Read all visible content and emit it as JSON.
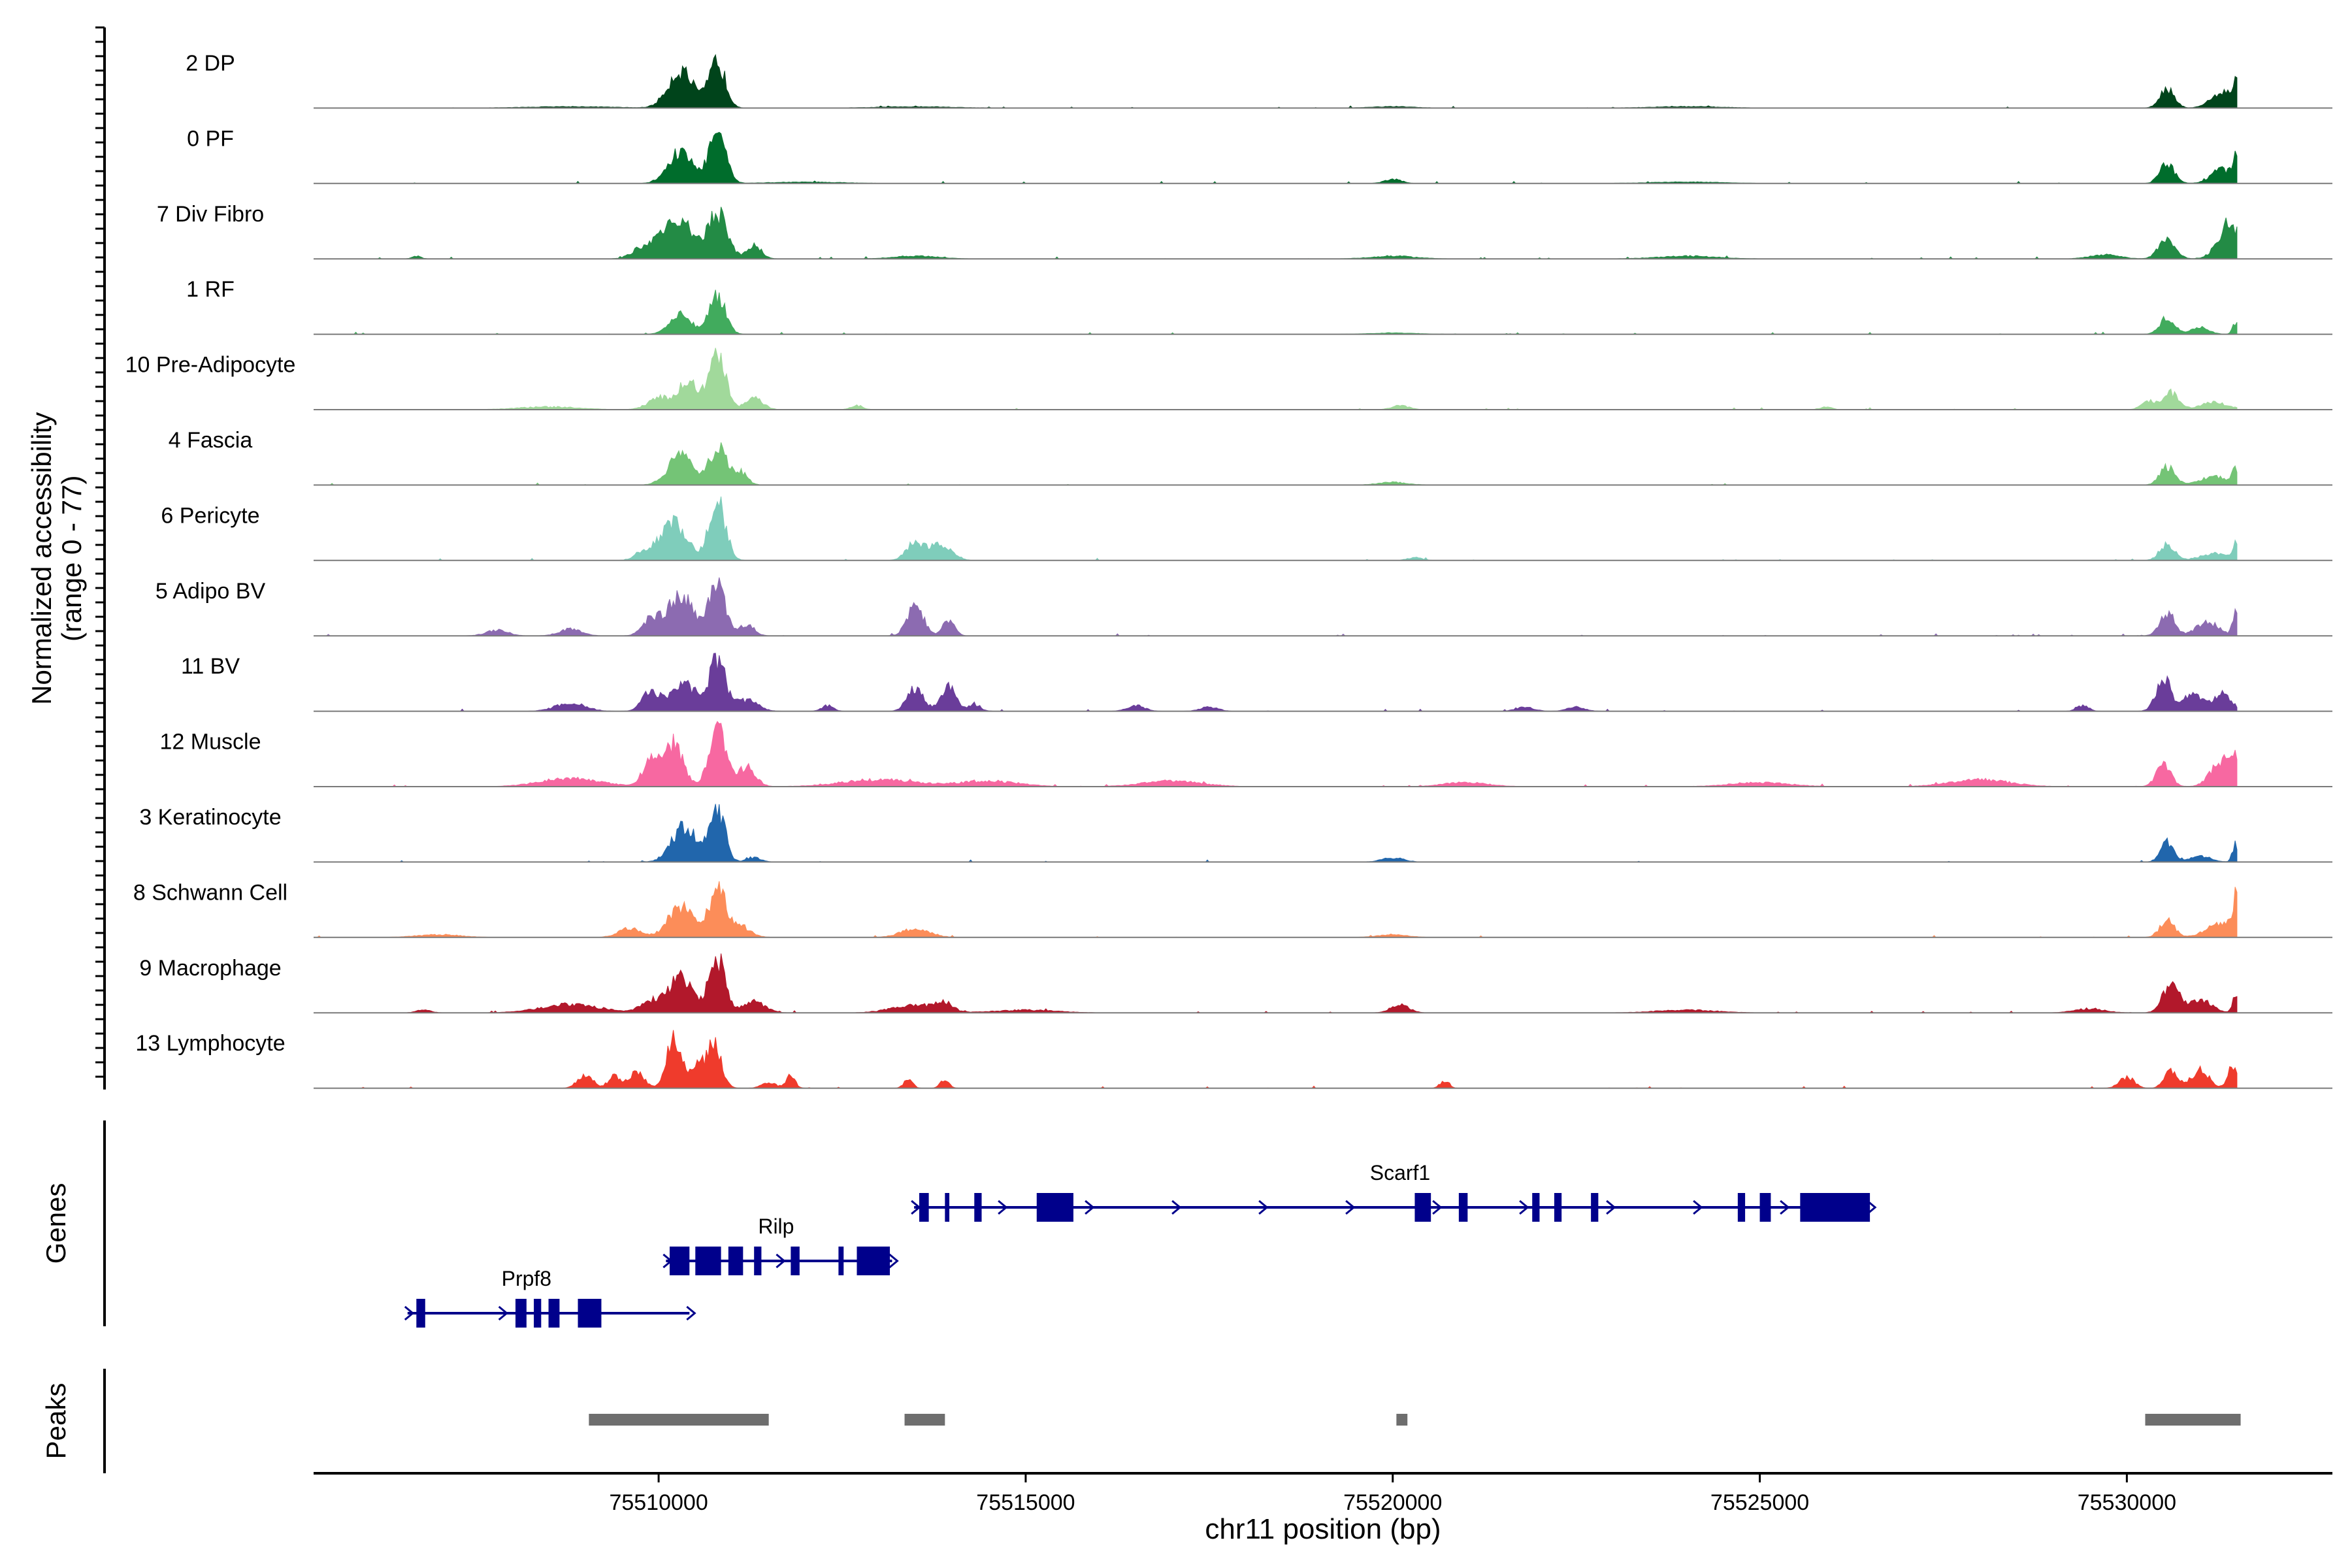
{
  "chart_data": {
    "type": "area",
    "y_axis_label": "Normalized accessibility",
    "y_axis_range_label": "(range 0 - 77)",
    "ylim": [
      0,
      77
    ],
    "xlabel": "chr11 position (bp)",
    "xlim": [
      75505300,
      75532800
    ],
    "x_ticks": [
      75510000,
      75515000,
      75520000,
      75525000,
      75530000
    ],
    "x_tick_labels": [
      "75510000",
      "75515000",
      "75520000",
      "75525000",
      "75530000"
    ],
    "region": [
      75505300,
      75531500
    ],
    "tracks": [
      {
        "label": "2 DP",
        "color": "#00441b",
        "peaks": [
          [
            75510300,
            27,
            170
          ],
          [
            75510800,
            33,
            110
          ],
          [
            75530550,
            14,
            100
          ],
          [
            75531300,
            12,
            150
          ],
          [
            75531480,
            15,
            40
          ],
          [
            75508800,
            1,
            600
          ],
          [
            75513500,
            1,
            500
          ],
          [
            75520000,
            1,
            300
          ],
          [
            75524000,
            1,
            500
          ]
        ]
      },
      {
        "label": "0 PF",
        "color": "#006d2c",
        "peaks": [
          [
            75510300,
            23,
            170
          ],
          [
            75510800,
            37,
            110
          ],
          [
            75530550,
            14,
            100
          ],
          [
            75531300,
            10,
            150
          ],
          [
            75531480,
            14,
            40
          ],
          [
            75520000,
            3,
            120
          ],
          [
            75512000,
            1,
            500
          ],
          [
            75524000,
            1,
            500
          ]
        ]
      },
      {
        "label": "7 Div Fibro",
        "color": "#238b45",
        "peaks": [
          [
            75510250,
            29,
            200
          ],
          [
            75510800,
            33,
            130
          ],
          [
            75511300,
            10,
            100
          ],
          [
            75509800,
            8,
            150
          ],
          [
            75530550,
            15,
            110
          ],
          [
            75531400,
            26,
            150
          ],
          [
            75529700,
            3,
            200
          ],
          [
            75506700,
            2,
            60
          ],
          [
            75513500,
            2,
            300
          ],
          [
            75520000,
            2,
            300
          ],
          [
            75524000,
            2,
            400
          ]
        ]
      },
      {
        "label": "1 RF",
        "color": "#41ab5d",
        "peaks": [
          [
            75510300,
            14,
            150
          ],
          [
            75510800,
            29,
            110
          ],
          [
            75530550,
            12,
            100
          ],
          [
            75531000,
            5,
            120
          ],
          [
            75531480,
            8,
            40
          ],
          [
            75520000,
            1,
            300
          ]
        ]
      },
      {
        "label": "10 Pre-Adipocyte",
        "color": "#a1d99b",
        "peaks": [
          [
            75510400,
            19,
            150
          ],
          [
            75510800,
            40,
            110
          ],
          [
            75510000,
            8,
            150
          ],
          [
            75511300,
            8,
            120
          ],
          [
            75512700,
            3,
            80
          ],
          [
            75530600,
            12,
            100
          ],
          [
            75530300,
            6,
            100
          ],
          [
            75531200,
            5,
            200
          ],
          [
            75520100,
            3,
            120
          ],
          [
            75525900,
            2,
            80
          ],
          [
            75508500,
            2,
            400
          ]
        ]
      },
      {
        "label": "4 Fascia",
        "color": "#74c476",
        "peaks": [
          [
            75510300,
            21,
            170
          ],
          [
            75510800,
            27,
            110
          ],
          [
            75511100,
            10,
            100
          ],
          [
            75530550,
            13,
            100
          ],
          [
            75531200,
            6,
            200
          ],
          [
            75531480,
            11,
            40
          ],
          [
            75520000,
            2,
            200
          ]
        ]
      },
      {
        "label": "6 Pericyte",
        "color": "#7fcdbb",
        "peaks": [
          [
            75510200,
            27,
            180
          ],
          [
            75510800,
            42,
            110
          ],
          [
            75509800,
            6,
            120
          ],
          [
            75513500,
            13,
            120
          ],
          [
            75513800,
            10,
            120
          ],
          [
            75514000,
            4,
            100
          ],
          [
            75530550,
            12,
            100
          ],
          [
            75531200,
            5,
            200
          ],
          [
            75531480,
            12,
            40
          ],
          [
            75520300,
            2,
            100
          ]
        ]
      },
      {
        "label": "5 Adipo BV",
        "color": "#8c6bb1",
        "peaks": [
          [
            75510300,
            30,
            170
          ],
          [
            75510800,
            38,
            110
          ],
          [
            75509900,
            12,
            120
          ],
          [
            75511200,
            8,
            100
          ],
          [
            75513500,
            22,
            110
          ],
          [
            75513950,
            11,
            80
          ],
          [
            75507800,
            4,
            150
          ],
          [
            75508800,
            5,
            150
          ],
          [
            75530550,
            17,
            100
          ],
          [
            75531100,
            10,
            150
          ],
          [
            75531480,
            18,
            40
          ]
        ]
      },
      {
        "label": "11 BV",
        "color": "#6a3d9a",
        "peaks": [
          [
            75510350,
            20,
            170
          ],
          [
            75510800,
            36,
            110
          ],
          [
            75509900,
            14,
            120
          ],
          [
            75511200,
            8,
            150
          ],
          [
            75513500,
            17,
            110
          ],
          [
            75513950,
            18,
            100
          ],
          [
            75508800,
            6,
            200
          ],
          [
            75514300,
            5,
            80
          ],
          [
            75512300,
            4,
            80
          ],
          [
            75516500,
            4,
            120
          ],
          [
            75517500,
            3,
            120
          ],
          [
            75521800,
            3,
            120
          ],
          [
            75522500,
            3,
            120
          ],
          [
            75530500,
            24,
            100
          ],
          [
            75530900,
            12,
            130
          ],
          [
            75531300,
            13,
            120
          ],
          [
            75529400,
            4,
            80
          ]
        ]
      },
      {
        "label": "12 Muscle",
        "color": "#f768a1",
        "peaks": [
          [
            75510200,
            30,
            130
          ],
          [
            75510800,
            44,
            110
          ],
          [
            75509900,
            17,
            120
          ],
          [
            75511200,
            14,
            120
          ],
          [
            75508800,
            6,
            400
          ],
          [
            75513000,
            5,
            500
          ],
          [
            75514500,
            4,
            400
          ],
          [
            75517000,
            4,
            400
          ],
          [
            75521000,
            3,
            300
          ],
          [
            75525000,
            3,
            400
          ],
          [
            75528000,
            5,
            400
          ],
          [
            75530500,
            15,
            100
          ],
          [
            75531300,
            19,
            150
          ],
          [
            75531480,
            18,
            40
          ]
        ]
      },
      {
        "label": "3 Keratinocyte",
        "color": "#2166ac",
        "peaks": [
          [
            75510350,
            25,
            170
          ],
          [
            75510800,
            40,
            100
          ],
          [
            75530550,
            14,
            90
          ],
          [
            75531000,
            4,
            150
          ],
          [
            75531480,
            13,
            40
          ],
          [
            75520000,
            3,
            150
          ],
          [
            75511300,
            3,
            100
          ]
        ]
      },
      {
        "label": "8 Schwann Cell",
        "color": "#fc8d59",
        "peaks": [
          [
            75510300,
            22,
            170
          ],
          [
            75510800,
            36,
            110
          ],
          [
            75509600,
            7,
            150
          ],
          [
            75511100,
            8,
            150
          ],
          [
            75513500,
            6,
            200
          ],
          [
            75530550,
            12,
            100
          ],
          [
            75531300,
            11,
            200
          ],
          [
            75531480,
            23,
            40
          ],
          [
            75507000,
            2,
            300
          ],
          [
            75520000,
            2,
            200
          ]
        ]
      },
      {
        "label": "9 Macrophage",
        "color": "#b2182b",
        "peaks": [
          [
            75510300,
            25,
            170
          ],
          [
            75510800,
            38,
            110
          ],
          [
            75509900,
            8,
            150
          ],
          [
            75511300,
            8,
            150
          ],
          [
            75513500,
            6,
            300
          ],
          [
            75513900,
            6,
            100
          ],
          [
            75508800,
            6,
            400
          ],
          [
            75506800,
            2,
            100
          ],
          [
            75520100,
            6,
            120
          ],
          [
            75530600,
            21,
            110
          ],
          [
            75531000,
            10,
            150
          ],
          [
            75531480,
            12,
            40
          ],
          [
            75529500,
            3,
            200
          ],
          [
            75515000,
            2,
            400
          ],
          [
            75524000,
            2,
            400
          ]
        ]
      },
      {
        "label": "13 Lymphocyte",
        "color": "#ef3b2c",
        "peaks": [
          [
            75510200,
            34,
            100
          ],
          [
            75510750,
            32,
            100
          ],
          [
            75510500,
            16,
            100
          ],
          [
            75509700,
            12,
            100
          ],
          [
            75509400,
            9,
            80
          ],
          [
            75509000,
            10,
            100
          ],
          [
            75511500,
            4,
            100
          ],
          [
            75511800,
            9,
            60
          ],
          [
            75513400,
            6,
            60
          ],
          [
            75513900,
            6,
            60
          ],
          [
            75520700,
            5,
            60
          ],
          [
            75530000,
            8,
            100
          ],
          [
            75530600,
            13,
            90
          ],
          [
            75531000,
            13,
            120
          ],
          [
            75531450,
            17,
            70
          ]
        ]
      }
    ],
    "genes": {
      "label": "Genes",
      "items": [
        {
          "name": "Prpf8",
          "start": 75506580,
          "end": 75510420,
          "label_x": 75508200,
          "exons": [
            [
              75506700,
              75506820
            ],
            [
              75508050,
              75508200
            ],
            [
              75508300,
              75508400
            ],
            [
              75508500,
              75508650
            ],
            [
              75508900,
              75509220
            ]
          ]
        },
        {
          "name": "Rilp",
          "start": 75510100,
          "end": 75513180,
          "label_x": 75511600,
          "exons": [
            [
              75510150,
              75510420
            ],
            [
              75510500,
              75510850
            ],
            [
              75510950,
              75511150
            ],
            [
              75511300,
              75511400
            ],
            [
              75511800,
              75511920
            ],
            [
              75512450,
              75512520
            ],
            [
              75512700,
              75513150
            ]
          ]
        },
        {
          "name": "Scarf1",
          "start": 75513480,
          "end": 75526500,
          "label_x": 75520100,
          "exons": [
            [
              75513550,
              75513680
            ],
            [
              75513900,
              75513960
            ],
            [
              75514300,
              75514400
            ],
            [
              75515150,
              75515650
            ],
            [
              75520300,
              75520520
            ],
            [
              75520900,
              75521020
            ],
            [
              75521900,
              75522000
            ],
            [
              75522200,
              75522300
            ],
            [
              75522700,
              75522800
            ],
            [
              75524700,
              75524800
            ],
            [
              75525000,
              75525150
            ],
            [
              75525550,
              75526500
            ]
          ]
        }
      ]
    },
    "peaks_track": {
      "label": "Peaks",
      "regions": [
        [
          75509050,
          75511500
        ],
        [
          75513350,
          75513900
        ],
        [
          75520050,
          75520200
        ],
        [
          75530250,
          75531550
        ]
      ]
    }
  }
}
